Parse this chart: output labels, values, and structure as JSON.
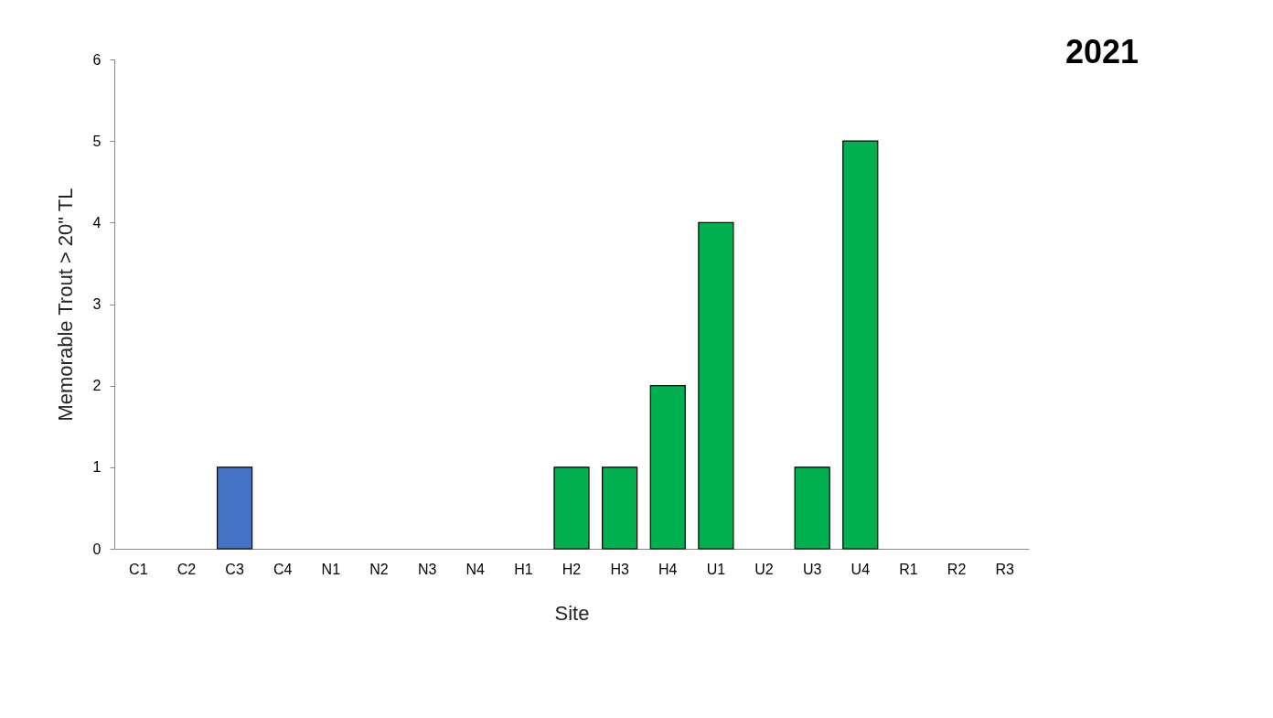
{
  "chart_data": {
    "type": "bar",
    "title": "2021",
    "xlabel": "Site",
    "ylabel": "Memorable Trout > 20\" TL",
    "categories": [
      "C1",
      "C2",
      "C3",
      "C4",
      "N1",
      "N2",
      "N3",
      "N4",
      "H1",
      "H2",
      "H3",
      "H4",
      "U1",
      "U2",
      "U3",
      "U4",
      "R1",
      "R2",
      "R3"
    ],
    "values": [
      0,
      0,
      1,
      0,
      0,
      0,
      0,
      0,
      0,
      1,
      1,
      2,
      4,
      0,
      1,
      5,
      0,
      0,
      0
    ],
    "colors": [
      null,
      null,
      "#4472c4",
      null,
      null,
      null,
      null,
      null,
      null,
      "#00b050",
      "#00b050",
      "#00b050",
      "#00b050",
      null,
      "#00b050",
      "#00b050",
      null,
      null,
      null
    ],
    "ylim": [
      0,
      6
    ],
    "yticks": [
      0,
      1,
      2,
      3,
      4,
      5,
      6
    ],
    "grid": false,
    "legend": false
  }
}
